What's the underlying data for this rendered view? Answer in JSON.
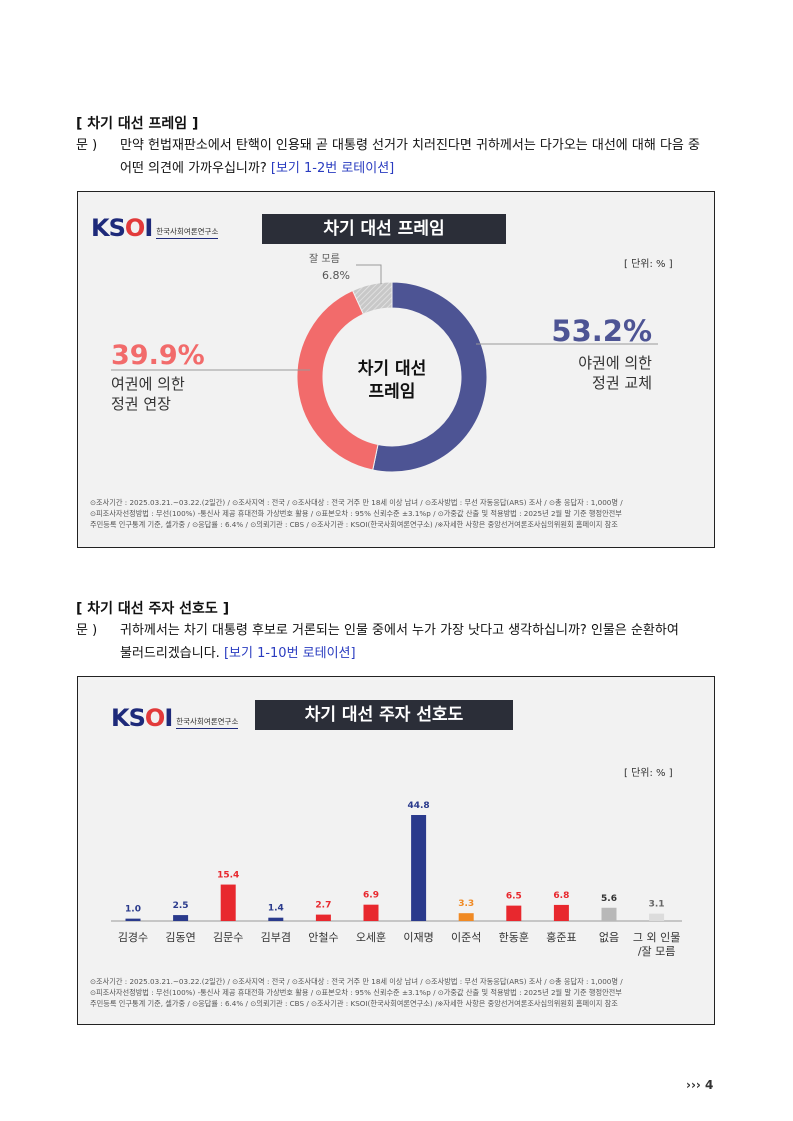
{
  "section1": {
    "title": "[ 차기 대선 프레임 ]",
    "q_label": "문 )",
    "q_line1": "만약 헌법재판소에서 탄핵이 인용돼 곧 대통령 선거가 치러진다면 귀하께서는 다가오는 대선에 대해 다음 중",
    "q_line2": "어떤 의견에 가까우십니까?",
    "q_rot": "[보기 1-2번 로테이션]"
  },
  "section2": {
    "title": "[ 차기 대선 주자 선호도 ]",
    "q_label": "문 )",
    "q_line1": "귀하께서는 차기 대통령 후보로 거론되는 인물 중에서 누가 가장 낫다고 생각하십니까? 인물은 순환하여",
    "q_line2": "불러드리겠습니다.",
    "q_rot": "[보기 1-10번 로테이션]"
  },
  "logo": {
    "mark_k": "K",
    "mark_s": "S",
    "mark_o": "O",
    "mark_i": "I",
    "sub": "한국사회여론연구소"
  },
  "footer": {
    "line1": "⊙조사기간 : 2025.03.21.~03.22.(2일간) / ⊙조사지역 : 전국 / ⊙조사대상 : 전국 거주 만 18세 이상 남녀 / ⊙조사방법 : 무선 자동응답(ARS) 조사 / ⊙총 응답자 : 1,000명 /",
    "line2": "⊙피조사자선정방법 : 무선(100%) -통신사 제공 휴대전화 가상번호 활용 / ⊙표본오차 : 95% 신뢰수준 ±3.1%p / ⊙가중값 산출 및 적용방법 : 2025년 2월 말 기준 행정안전부",
    "line3": "주민등록 인구통계 기준, 셀가중 / ⊙응답률 : 6.4% / ⊙의뢰기관 : CBS / ⊙조사기관 : KSOI(한국사회여론연구소) /※자세한 사항은 중앙선거여론조사심의위원회 홈페이지 참조"
  },
  "page_number": "››› 4",
  "colors": {
    "blue": "#4d5494",
    "red": "#f26b6b",
    "gray": "#c8c8c8",
    "bar_blue": "#2a3a8c",
    "bar_red": "#e8282e",
    "bar_orange": "#f08a24",
    "bar_gray": "#b8b8b8"
  },
  "chart_data": [
    {
      "type": "pie",
      "title": "차기 대선 프레임",
      "center_label_1": "차기 대선",
      "center_label_2": "프레임",
      "unit": "[ 단위: % ]",
      "slices": [
        {
          "name_1": "야권에 의한",
          "name_2": "정권 교체",
          "value": 53.2,
          "value_label": "53.2%",
          "color": "#4d5494"
        },
        {
          "name_1": "여권에 의한",
          "name_2": "정권 연장",
          "value": 39.9,
          "value_label": "39.9%",
          "color": "#f26b6b"
        },
        {
          "name_1": "잘 모름",
          "name_2": "",
          "value": 6.8,
          "value_label": "6.8%",
          "color": "#c8c8c8"
        }
      ]
    },
    {
      "type": "bar",
      "title": "차기 대선 주자 선호도",
      "unit": "[ 단위: % ]",
      "categories": [
        {
          "name_1": "김경수",
          "name_2": "",
          "value": 1.0,
          "label": "1.0",
          "color": "#2a3a8c",
          "label_color": "#2a3a8c"
        },
        {
          "name_1": "김동연",
          "name_2": "",
          "value": 2.5,
          "label": "2.5",
          "color": "#2a3a8c",
          "label_color": "#2a3a8c"
        },
        {
          "name_1": "김문수",
          "name_2": "",
          "value": 15.4,
          "label": "15.4",
          "color": "#e8282e",
          "label_color": "#e8282e"
        },
        {
          "name_1": "김부겸",
          "name_2": "",
          "value": 1.4,
          "label": "1.4",
          "color": "#2a3a8c",
          "label_color": "#2a3a8c"
        },
        {
          "name_1": "안철수",
          "name_2": "",
          "value": 2.7,
          "label": "2.7",
          "color": "#e8282e",
          "label_color": "#e8282e"
        },
        {
          "name_1": "오세훈",
          "name_2": "",
          "value": 6.9,
          "label": "6.9",
          "color": "#e8282e",
          "label_color": "#e8282e"
        },
        {
          "name_1": "이재명",
          "name_2": "",
          "value": 44.8,
          "label": "44.8",
          "color": "#2a3a8c",
          "label_color": "#2a3a8c"
        },
        {
          "name_1": "이준석",
          "name_2": "",
          "value": 3.3,
          "label": "3.3",
          "color": "#f08a24",
          "label_color": "#f08a24"
        },
        {
          "name_1": "한동훈",
          "name_2": "",
          "value": 6.5,
          "label": "6.5",
          "color": "#e8282e",
          "label_color": "#e8282e"
        },
        {
          "name_1": "홍준표",
          "name_2": "",
          "value": 6.8,
          "label": "6.8",
          "color": "#e8282e",
          "label_color": "#e8282e"
        },
        {
          "name_1": "없음",
          "name_2": "",
          "value": 5.6,
          "label": "5.6",
          "color": "#b8b8b8",
          "label_color": "#333333"
        },
        {
          "name_1": "그 외 인물",
          "name_2": "/잘 모름",
          "value": 3.1,
          "label": "3.1",
          "color": "#dcdcdc",
          "label_color": "#666666"
        }
      ]
    }
  ]
}
